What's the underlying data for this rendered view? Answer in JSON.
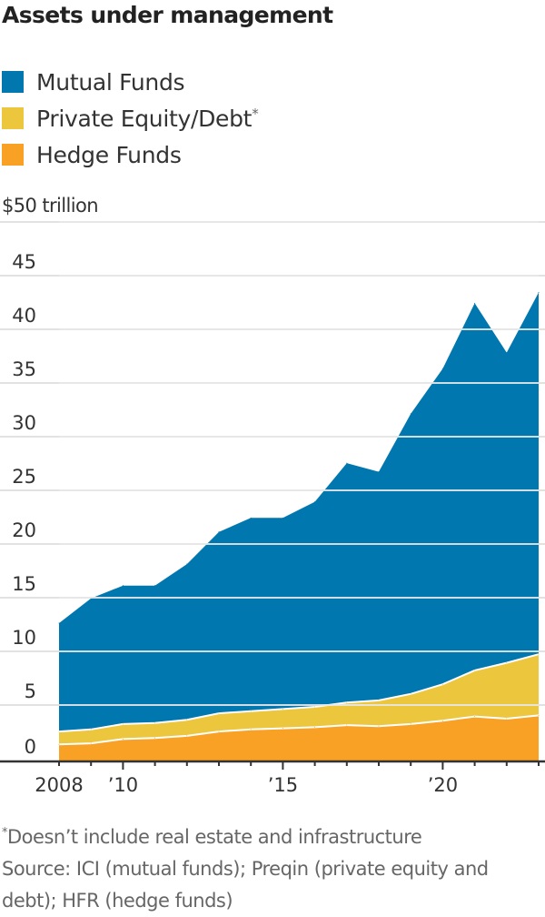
{
  "title": "Assets under management",
  "legend": [
    {
      "label": "Mutual Funds",
      "marker": "",
      "color": "#0077AE"
    },
    {
      "label": "Private Equity/Debt",
      "marker": "*",
      "color": "#ECC63D"
    },
    {
      "label": "Hedge Funds",
      "marker": "",
      "color": "#F9A125"
    }
  ],
  "unit_label": "$50 trillion",
  "footnote": {
    "marker": "*",
    "text": "Doesn’t include real estate and infrastructure",
    "source": "Source: ICI (mutual funds); Preqin (private equity and debt); HFR (hedge funds)"
  },
  "chart_data": {
    "type": "area",
    "stacked": true,
    "title": "Assets under management",
    "xlabel": "",
    "ylabel": "$ trillion",
    "x": [
      2008,
      2009,
      2010,
      2011,
      2012,
      2013,
      2014,
      2015,
      2016,
      2017,
      2018,
      2019,
      2020,
      2021,
      2022,
      2023
    ],
    "x_tick_values": [
      2008,
      2009,
      2010,
      2011,
      2012,
      2013,
      2014,
      2015,
      2016,
      2017,
      2018,
      2019,
      2020,
      2021,
      2022,
      2023
    ],
    "x_tick_labels": [
      {
        "value": 2008,
        "label": "2008"
      },
      {
        "value": 2010,
        "label": "’10"
      },
      {
        "value": 2015,
        "label": "’15"
      },
      {
        "value": 2020,
        "label": "’20"
      }
    ],
    "y_ticks": [
      {
        "value": 0,
        "label": "0"
      },
      {
        "value": 5,
        "label": "5"
      },
      {
        "value": 10,
        "label": "10"
      },
      {
        "value": 15,
        "label": "15"
      },
      {
        "value": 20,
        "label": "20"
      },
      {
        "value": 25,
        "label": "25"
      },
      {
        "value": 30,
        "label": "30"
      },
      {
        "value": 35,
        "label": "35"
      },
      {
        "value": 40,
        "label": "40"
      },
      {
        "value": 45,
        "label": "45"
      },
      {
        "value": 50,
        "label": "$50 trillion"
      }
    ],
    "ylim": [
      0,
      50
    ],
    "grid": true,
    "legend_position": "top-left",
    "series": [
      {
        "name": "Hedge Funds",
        "color": "#F9A125",
        "values": [
          1.5,
          1.6,
          2.0,
          2.1,
          2.3,
          2.7,
          2.9,
          3.0,
          3.1,
          3.3,
          3.2,
          3.4,
          3.7,
          4.1,
          3.9,
          4.2
        ]
      },
      {
        "name": "Private Equity/Debt",
        "color": "#ECC63D",
        "values": [
          1.2,
          1.3,
          1.4,
          1.4,
          1.5,
          1.7,
          1.7,
          1.8,
          1.9,
          2.1,
          2.4,
          2.8,
          3.4,
          4.3,
          5.2,
          5.7
        ]
      },
      {
        "name": "Mutual Funds",
        "color": "#0077AE",
        "values": [
          10.1,
          12.2,
          12.9,
          12.8,
          14.5,
          16.9,
          18.0,
          17.8,
          19.1,
          22.3,
          21.3,
          26.1,
          29.4,
          34.2,
          28.9,
          33.7
        ]
      }
    ]
  }
}
